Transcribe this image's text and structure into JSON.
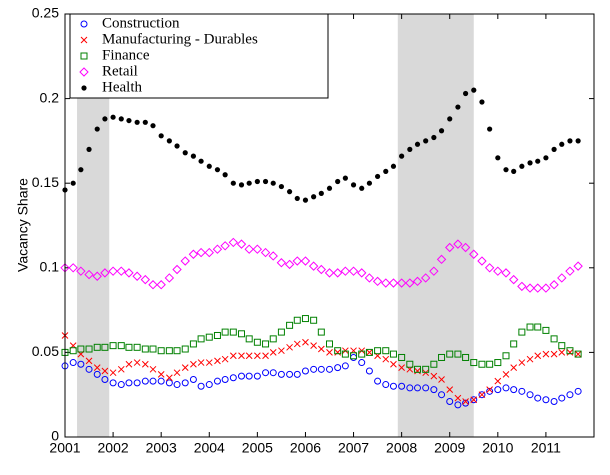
{
  "chart_data": {
    "type": "scatter",
    "y_label": "Vacancy Share",
    "xlim": [
      2001,
      2012
    ],
    "ylim": [
      0,
      0.25
    ],
    "xticks": [
      2001,
      2002,
      2003,
      2004,
      2005,
      2006,
      2007,
      2008,
      2009,
      2010,
      2011
    ],
    "yticks": [
      0,
      0.05,
      0.1,
      0.15,
      0.2,
      0.25
    ],
    "shaded_regions": [
      [
        2001.25,
        2001.92
      ],
      [
        2007.92,
        2009.5
      ]
    ],
    "legend_position": "upper left",
    "x": [
      2001,
      2001.17,
      2001.33,
      2001.5,
      2001.67,
      2001.83,
      2002,
      2002.17,
      2002.33,
      2002.5,
      2002.67,
      2002.83,
      2003,
      2003.17,
      2003.33,
      2003.5,
      2003.67,
      2003.83,
      2004,
      2004.17,
      2004.33,
      2004.5,
      2004.67,
      2004.83,
      2005,
      2005.17,
      2005.33,
      2005.5,
      2005.67,
      2005.83,
      2006,
      2006.17,
      2006.33,
      2006.5,
      2006.67,
      2006.83,
      2007,
      2007.17,
      2007.33,
      2007.5,
      2007.67,
      2007.83,
      2008,
      2008.17,
      2008.33,
      2008.5,
      2008.67,
      2008.83,
      2009,
      2009.17,
      2009.33,
      2009.5,
      2009.67,
      2009.83,
      2010,
      2010.17,
      2010.33,
      2010.5,
      2010.67,
      2010.83,
      2011,
      2011.17,
      2011.33,
      2011.5,
      2011.67
    ],
    "series": [
      {
        "name": "Construction",
        "color": "#0000ff",
        "marker": "circle",
        "values": [
          0.042,
          0.044,
          0.043,
          0.04,
          0.037,
          0.034,
          0.032,
          0.031,
          0.032,
          0.032,
          0.033,
          0.033,
          0.033,
          0.032,
          0.031,
          0.032,
          0.034,
          0.03,
          0.031,
          0.033,
          0.034,
          0.035,
          0.036,
          0.036,
          0.036,
          0.038,
          0.038,
          0.037,
          0.037,
          0.037,
          0.039,
          0.04,
          0.04,
          0.04,
          0.041,
          0.042,
          0.047,
          0.044,
          0.039,
          0.033,
          0.031,
          0.03,
          0.03,
          0.029,
          0.029,
          0.029,
          0.028,
          0.025,
          0.021,
          0.019,
          0.02,
          0.022,
          0.025,
          0.027,
          0.028,
          0.029,
          0.028,
          0.027,
          0.025,
          0.023,
          0.022,
          0.021,
          0.023,
          0.025,
          0.027
        ]
      },
      {
        "name": "Manufacturing - Durables",
        "color": "#ff0000",
        "marker": "x",
        "values": [
          0.06,
          0.054,
          0.049,
          0.045,
          0.041,
          0.039,
          0.038,
          0.04,
          0.043,
          0.044,
          0.043,
          0.04,
          0.037,
          0.035,
          0.038,
          0.041,
          0.043,
          0.044,
          0.044,
          0.045,
          0.046,
          0.048,
          0.048,
          0.048,
          0.048,
          0.048,
          0.05,
          0.051,
          0.053,
          0.055,
          0.056,
          0.054,
          0.052,
          0.05,
          0.05,
          0.051,
          0.051,
          0.051,
          0.05,
          0.048,
          0.046,
          0.043,
          0.041,
          0.04,
          0.039,
          0.038,
          0.036,
          0.034,
          0.028,
          0.023,
          0.021,
          0.022,
          0.025,
          0.028,
          0.033,
          0.037,
          0.041,
          0.044,
          0.046,
          0.048,
          0.049,
          0.049,
          0.05,
          0.05,
          0.049
        ]
      },
      {
        "name": "Finance",
        "color": "#008000",
        "marker": "square",
        "values": [
          0.05,
          0.051,
          0.052,
          0.052,
          0.053,
          0.053,
          0.054,
          0.054,
          0.053,
          0.053,
          0.052,
          0.052,
          0.051,
          0.051,
          0.051,
          0.052,
          0.055,
          0.058,
          0.059,
          0.06,
          0.062,
          0.062,
          0.061,
          0.058,
          0.056,
          0.055,
          0.058,
          0.062,
          0.066,
          0.069,
          0.07,
          0.069,
          0.062,
          0.055,
          0.051,
          0.049,
          0.048,
          0.049,
          0.05,
          0.051,
          0.051,
          0.049,
          0.047,
          0.043,
          0.04,
          0.04,
          0.043,
          0.047,
          0.049,
          0.049,
          0.047,
          0.044,
          0.043,
          0.043,
          0.044,
          0.048,
          0.055,
          0.062,
          0.065,
          0.065,
          0.063,
          0.058,
          0.054,
          0.051,
          0.049
        ]
      },
      {
        "name": "Retail",
        "color": "#ff00ff",
        "marker": "diamond",
        "values": [
          0.1,
          0.1,
          0.098,
          0.096,
          0.095,
          0.097,
          0.098,
          0.098,
          0.097,
          0.095,
          0.093,
          0.09,
          0.09,
          0.094,
          0.099,
          0.104,
          0.108,
          0.109,
          0.109,
          0.111,
          0.113,
          0.115,
          0.114,
          0.111,
          0.111,
          0.109,
          0.107,
          0.103,
          0.102,
          0.104,
          0.104,
          0.101,
          0.099,
          0.097,
          0.097,
          0.098,
          0.098,
          0.097,
          0.094,
          0.092,
          0.091,
          0.091,
          0.091,
          0.091,
          0.092,
          0.094,
          0.098,
          0.105,
          0.112,
          0.114,
          0.112,
          0.108,
          0.104,
          0.1,
          0.098,
          0.097,
          0.093,
          0.089,
          0.088,
          0.088,
          0.088,
          0.09,
          0.094,
          0.098,
          0.101
        ]
      },
      {
        "name": "Health",
        "color": "#000000",
        "marker": "dot",
        "values": [
          0.146,
          0.15,
          0.158,
          0.17,
          0.182,
          0.188,
          0.189,
          0.188,
          0.187,
          0.186,
          0.186,
          0.184,
          0.178,
          0.175,
          0.172,
          0.168,
          0.166,
          0.163,
          0.16,
          0.158,
          0.155,
          0.15,
          0.149,
          0.15,
          0.151,
          0.151,
          0.15,
          0.148,
          0.145,
          0.141,
          0.14,
          0.142,
          0.144,
          0.147,
          0.151,
          0.153,
          0.149,
          0.147,
          0.15,
          0.154,
          0.157,
          0.16,
          0.166,
          0.17,
          0.173,
          0.175,
          0.177,
          0.181,
          0.188,
          0.195,
          0.203,
          0.205,
          0.198,
          0.182,
          0.165,
          0.158,
          0.157,
          0.16,
          0.162,
          0.163,
          0.165,
          0.17,
          0.173,
          0.175,
          0.175
        ]
      }
    ]
  }
}
